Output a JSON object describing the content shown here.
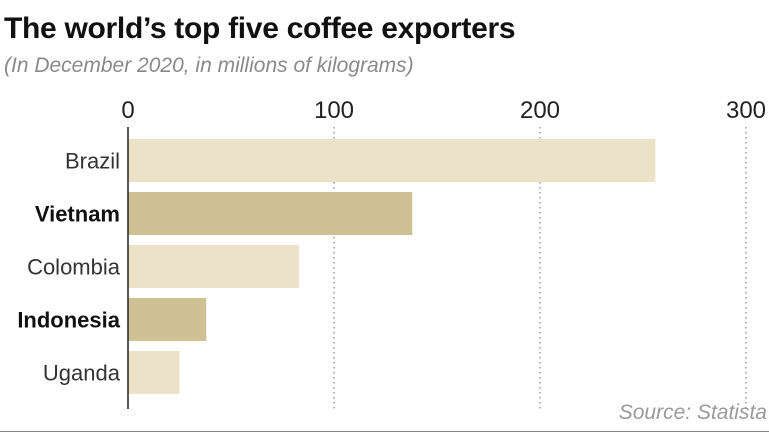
{
  "header": {
    "title": "The world’s top five coffee exporters",
    "subtitle": "(In December 2020, in millions of kilograms)"
  },
  "footer": {
    "source": "Source: Statista"
  },
  "colors": {
    "bar_light": "#ebe2c9",
    "bar_dark": "#cfc193",
    "grid": "#9a9a9a",
    "axis": "#222222",
    "text": "#333333"
  },
  "chart_data": {
    "type": "bar",
    "orientation": "horizontal",
    "title": "The world’s top five coffee exporters",
    "subtitle": "(In December 2020, in millions of kilograms)",
    "xlabel": "",
    "ylabel": "",
    "xlim": [
      0,
      300
    ],
    "ticks": [
      0,
      100,
      200,
      300
    ],
    "tick_labels": [
      "0",
      "100",
      "200",
      "300"
    ],
    "grid": "vertical dotted",
    "categories": [
      "Brazil",
      "Vietnam",
      "Colombia",
      "Indonesia",
      "Uganda"
    ],
    "values": [
      256,
      138,
      83,
      38,
      25
    ],
    "highlighted": [
      false,
      true,
      false,
      true,
      false
    ]
  }
}
